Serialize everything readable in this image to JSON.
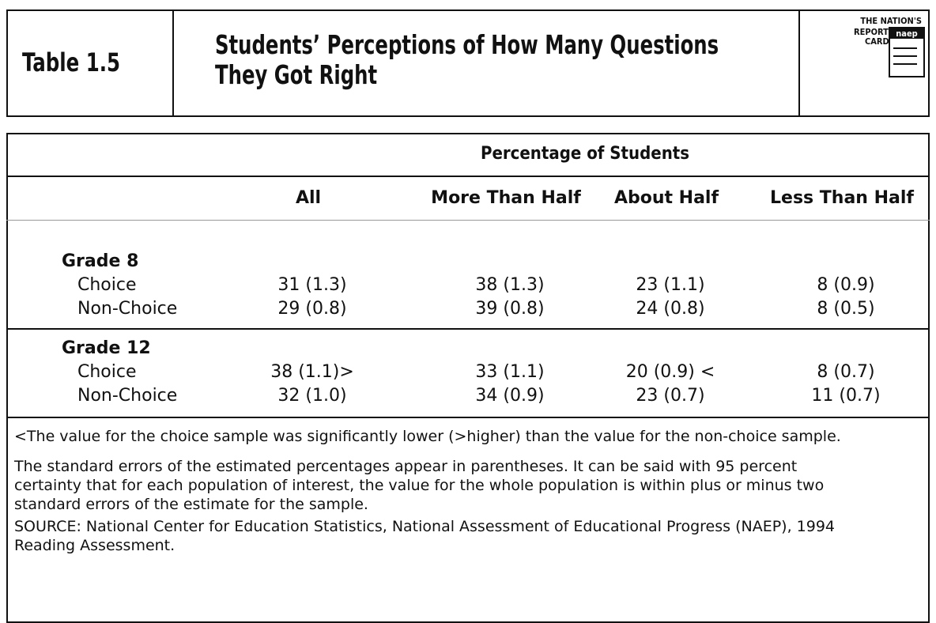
{
  "header": {
    "table_number": "Table 1.5",
    "title_lines": [
      "Students’ Perceptions of How Many Questions",
      "They Got Right"
    ],
    "logo": {
      "lines": [
        "THE NATION'S",
        "REPORT",
        "CARD"
      ],
      "badge": "naep"
    }
  },
  "table": {
    "group_header": "Percentage of Students",
    "columns": [
      "All",
      "More Than Half",
      "About Half",
      "Less Than Half"
    ],
    "sections": [
      {
        "label": "Grade 8",
        "rows": [
          [
            "Choice",
            "31 (1.3)",
            "38 (1.3)",
            "23 (1.1)",
            "8 (0.9)"
          ],
          [
            "Non-Choice",
            "29 (0.8)",
            "39 (0.8)",
            "24 (0.8)",
            "8 (0.5)"
          ]
        ]
      },
      {
        "label": "Grade 12",
        "rows": [
          [
            "Choice",
            "38 (1.1)>",
            "33 (1.1)",
            "20 (0.9) <",
            "8 (0.7)"
          ],
          [
            "Non-Choice",
            "32 (1.0)",
            "34 (0.9)",
            "23 (0.7)",
            "11 (0.7)"
          ]
        ]
      }
    ]
  },
  "notes": [
    "<The value for the choice sample was significantly lower (>higher) than the value for the non-choice sample.",
    "The standard errors of the estimated percentages appear in parentheses. It can be said with 95 percent certainty that for each population of interest, the value for the whole population is within plus or minus two standard errors of the estimate for the sample.",
    "SOURCE: National Center for Education Statistics, National Assessment of Educational Progress (NAEP), 1994 Reading Assessment."
  ]
}
